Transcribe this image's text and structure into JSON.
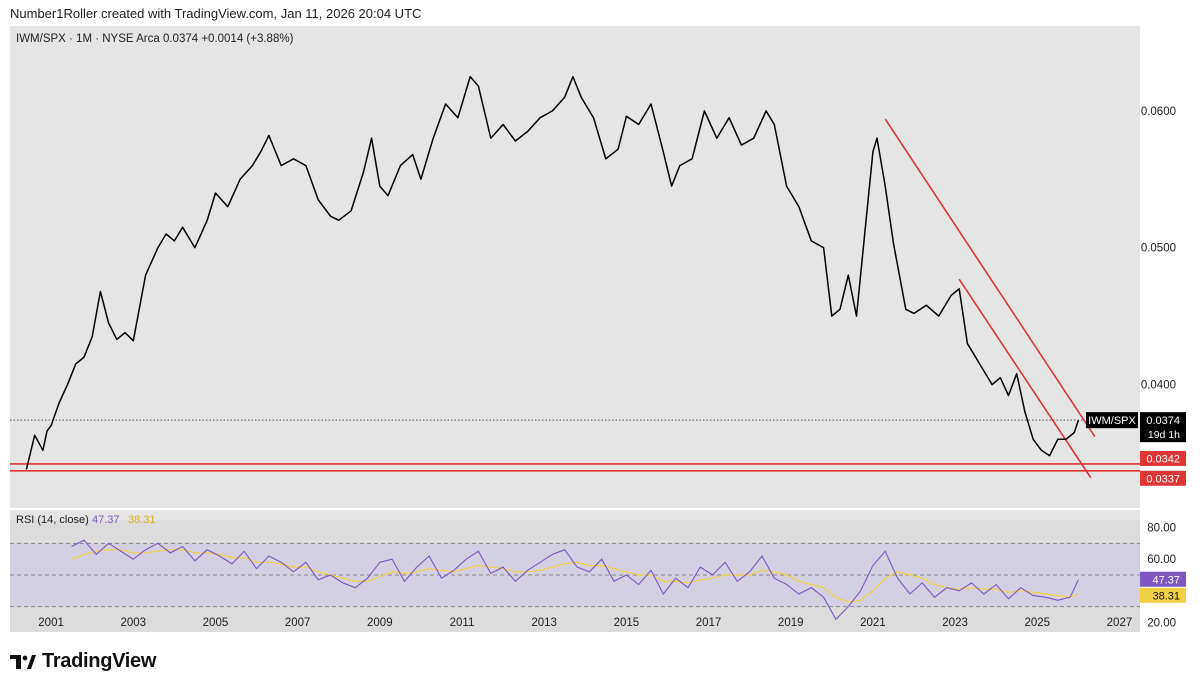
{
  "header": {
    "caption": "Number1Roller created with TradingView.com, Jan 11, 2026 20:04 UTC"
  },
  "footer": {
    "brand": "TradingView",
    "logo_icon": "tradingview-logo-icon"
  },
  "chart_data": {
    "type": "line",
    "legend": "IWM/SPX · 1M · NYSE Arca  0.0374  +0.0014 (+3.88%)",
    "symbol_tag": "IWM/SPX",
    "last_value_label": "0.0374",
    "countdown": "19d 1h",
    "x_range": [
      2000.0,
      2027.5
    ],
    "x_ticks": [
      2001,
      2003,
      2005,
      2007,
      2009,
      2011,
      2013,
      2015,
      2017,
      2019,
      2021,
      2023,
      2025,
      2027
    ],
    "y_range": [
      0.0312,
      0.0662
    ],
    "y_ticks": [
      "0.0600",
      "0.0500",
      "0.0400"
    ],
    "series": [
      {
        "name": "IWM/SPX",
        "color": "#000000",
        "x": [
          2000.4,
          2000.6,
          2000.8,
          2000.9,
          2001.0,
          2001.2,
          2001.4,
          2001.6,
          2001.8,
          2002.0,
          2002.2,
          2002.4,
          2002.6,
          2002.8,
          2003.0,
          2003.3,
          2003.6,
          2003.8,
          2004.0,
          2004.2,
          2004.5,
          2004.8,
          2005.0,
          2005.3,
          2005.6,
          2005.9,
          2006.1,
          2006.3,
          2006.6,
          2006.9,
          2007.2,
          2007.5,
          2007.8,
          2008.0,
          2008.3,
          2008.6,
          2008.8,
          2009.0,
          2009.2,
          2009.5,
          2009.8,
          2010.0,
          2010.3,
          2010.6,
          2010.9,
          2011.2,
          2011.4,
          2011.7,
          2012.0,
          2012.3,
          2012.6,
          2012.9,
          2013.2,
          2013.5,
          2013.7,
          2013.9,
          2014.2,
          2014.5,
          2014.8,
          2015.0,
          2015.3,
          2015.6,
          2015.9,
          2016.1,
          2016.3,
          2016.6,
          2016.9,
          2017.2,
          2017.5,
          2017.8,
          2018.1,
          2018.4,
          2018.6,
          2018.9,
          2019.2,
          2019.5,
          2019.8,
          2020.0,
          2020.2,
          2020.4,
          2020.6,
          2020.8,
          2021.0,
          2021.1,
          2021.3,
          2021.5,
          2021.8,
          2022.0,
          2022.3,
          2022.6,
          2022.9,
          2023.1,
          2023.3,
          2023.6,
          2023.9,
          2024.1,
          2024.3,
          2024.5,
          2024.7,
          2024.9,
          2025.1,
          2025.3,
          2025.5,
          2025.7,
          2025.9,
          2026.0
        ],
        "y": [
          0.0338,
          0.0363,
          0.0352,
          0.0366,
          0.037,
          0.0387,
          0.04,
          0.0415,
          0.042,
          0.0435,
          0.0468,
          0.0445,
          0.0433,
          0.0438,
          0.0432,
          0.048,
          0.05,
          0.051,
          0.0505,
          0.0515,
          0.05,
          0.052,
          0.054,
          0.053,
          0.055,
          0.056,
          0.057,
          0.0582,
          0.056,
          0.0565,
          0.056,
          0.0535,
          0.0523,
          0.052,
          0.0527,
          0.0555,
          0.058,
          0.0545,
          0.0538,
          0.056,
          0.0568,
          0.055,
          0.058,
          0.0605,
          0.0595,
          0.0625,
          0.0618,
          0.058,
          0.059,
          0.0578,
          0.0585,
          0.0595,
          0.06,
          0.061,
          0.0625,
          0.061,
          0.0595,
          0.0565,
          0.0572,
          0.0596,
          0.059,
          0.0605,
          0.057,
          0.0545,
          0.056,
          0.0565,
          0.06,
          0.058,
          0.0595,
          0.0575,
          0.058,
          0.06,
          0.059,
          0.0545,
          0.053,
          0.0505,
          0.05,
          0.045,
          0.0455,
          0.048,
          0.045,
          0.051,
          0.057,
          0.058,
          0.0545,
          0.0503,
          0.0455,
          0.0452,
          0.0458,
          0.045,
          0.0465,
          0.047,
          0.043,
          0.0415,
          0.04,
          0.0405,
          0.0392,
          0.0408,
          0.038,
          0.036,
          0.0352,
          0.0348,
          0.036,
          0.036,
          0.0365,
          0.0374
        ]
      }
    ],
    "trendlines": [
      {
        "name": "downtrend-upper",
        "color": "#e03535",
        "from": [
          2021.3,
          0.0594
        ],
        "to": [
          2026.4,
          0.0362
        ]
      },
      {
        "name": "downtrend-lower",
        "color": "#e03535",
        "from": [
          2023.1,
          0.0477
        ],
        "to": [
          2026.3,
          0.0332
        ]
      }
    ],
    "levels": [
      {
        "value": 0.0342,
        "label": "0.0342",
        "color": "#e03535"
      },
      {
        "value": 0.0337,
        "label": "0.0337",
        "color": "#e03535"
      }
    ],
    "current_line": {
      "value": 0.0374
    },
    "rsi": {
      "legend": "RSI (14, close)",
      "value_label": "47.37",
      "ma_label": "38.31",
      "y_range": [
        14,
        86
      ],
      "y_ticks": [
        "80.00",
        "60.00",
        "20.00"
      ],
      "bands": [
        70,
        50,
        30
      ],
      "rsi_color": "#7e57c2",
      "ma_color": "#f2d044",
      "x": [
        2001.5,
        2001.8,
        2002.1,
        2002.4,
        2002.7,
        2003.0,
        2003.3,
        2003.6,
        2003.9,
        2004.2,
        2004.5,
        2004.8,
        2005.1,
        2005.4,
        2005.7,
        2006.0,
        2006.3,
        2006.6,
        2006.9,
        2007.2,
        2007.5,
        2007.8,
        2008.1,
        2008.4,
        2008.7,
        2009.0,
        2009.3,
        2009.6,
        2009.9,
        2010.2,
        2010.5,
        2010.8,
        2011.1,
        2011.4,
        2011.7,
        2012.0,
        2012.3,
        2012.6,
        2012.9,
        2013.2,
        2013.5,
        2013.8,
        2014.1,
        2014.4,
        2014.7,
        2015.0,
        2015.3,
        2015.6,
        2015.9,
        2016.2,
        2016.5,
        2016.8,
        2017.1,
        2017.4,
        2017.7,
        2018.0,
        2018.3,
        2018.6,
        2018.9,
        2019.2,
        2019.5,
        2019.8,
        2020.1,
        2020.4,
        2020.7,
        2021.0,
        2021.3,
        2021.6,
        2021.9,
        2022.2,
        2022.5,
        2022.8,
        2023.1,
        2023.4,
        2023.7,
        2024.0,
        2024.3,
        2024.6,
        2024.9,
        2025.2,
        2025.5,
        2025.8,
        2026.0
      ],
      "values": [
        68,
        72,
        63,
        70,
        65,
        60,
        66,
        70,
        64,
        68,
        59,
        66,
        62,
        57,
        65,
        54,
        62,
        58,
        52,
        58,
        47,
        50,
        45,
        42,
        48,
        58,
        60,
        46,
        55,
        62,
        48,
        53,
        60,
        65,
        51,
        55,
        46,
        53,
        58,
        63,
        66,
        55,
        52,
        60,
        46,
        50,
        44,
        53,
        38,
        48,
        42,
        55,
        50,
        58,
        46,
        52,
        62,
        48,
        44,
        38,
        42,
        36,
        22,
        30,
        40,
        56,
        65,
        48,
        38,
        45,
        36,
        42,
        40,
        45,
        38,
        44,
        35,
        42,
        37,
        36,
        34,
        36,
        47
      ],
      "ma": [
        60,
        63,
        65,
        66,
        66,
        64,
        64,
        65,
        66,
        66,
        64,
        64,
        63,
        61,
        61,
        58,
        58,
        57,
        55,
        55,
        52,
        50,
        48,
        46,
        46,
        49,
        52,
        51,
        52,
        54,
        53,
        52,
        54,
        56,
        55,
        54,
        52,
        52,
        53,
        55,
        57,
        58,
        56,
        56,
        54,
        52,
        50,
        50,
        46,
        46,
        45,
        47,
        48,
        50,
        50,
        50,
        53,
        52,
        50,
        46,
        44,
        42,
        36,
        33,
        34,
        40,
        48,
        52,
        50,
        48,
        44,
        42,
        41,
        42,
        41,
        41,
        39,
        40,
        39,
        38,
        37,
        36,
        38
      ]
    }
  }
}
